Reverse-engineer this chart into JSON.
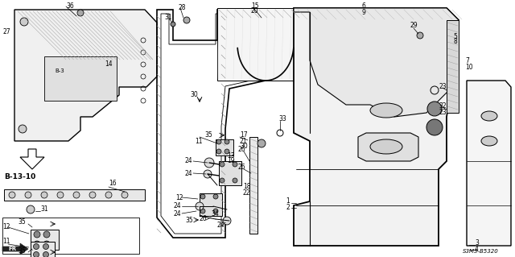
{
  "bg_color": "#ffffff",
  "line_color": "#000000",
  "diagram_code": "S3M3-B5320",
  "figsize": [
    6.4,
    3.19
  ],
  "dpi": 100
}
